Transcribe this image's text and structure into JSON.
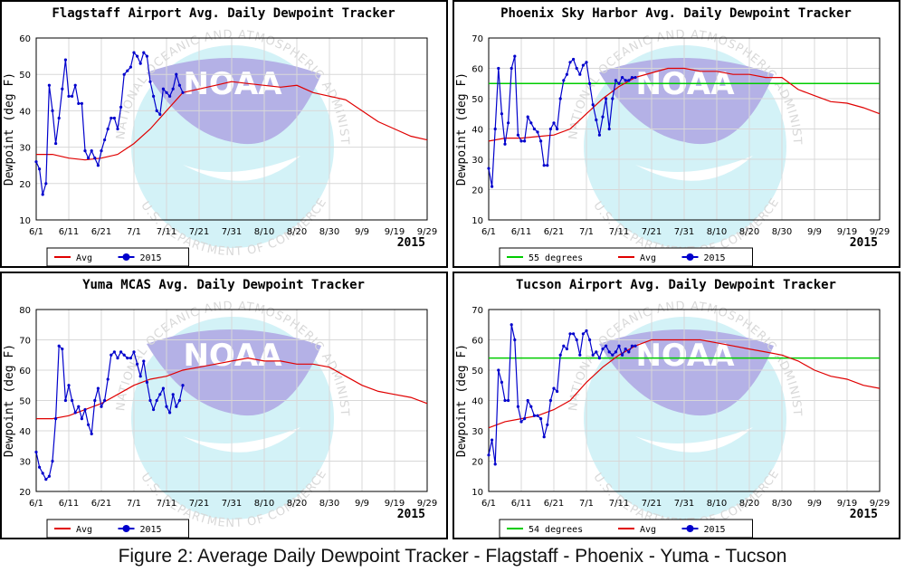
{
  "caption": "Figure 2: Average Daily Dewpoint Tracker - Flagstaff - Phoenix - Yuma - Tucson",
  "watermark": {
    "logo_text": "NOAA",
    "ring_text": "NATIONAL OCEANIC AND ATMOSPHERIC ADMINISTRATION",
    "bottom_text": "U.S. DEPARTMENT OF COMMERCE"
  },
  "colors": {
    "avg": "#e00000",
    "year": "#0000cc",
    "ref": "#00cc00",
    "grid": "#d8d8d8"
  },
  "chart_data": [
    {
      "type": "line",
      "title": "Flagstaff Airport Avg. Daily Dewpoint Tracker",
      "ylabel": "Dewpoint (deg F)",
      "year_label": "2015",
      "x_ticks": [
        "6/1",
        "6/11",
        "6/21",
        "7/1",
        "7/11",
        "7/21",
        "7/31",
        "8/10",
        "8/20",
        "8/30",
        "9/9",
        "9/19",
        "9/29"
      ],
      "ylim": [
        10,
        60
      ],
      "y_ticks": [
        10,
        20,
        30,
        40,
        50,
        60
      ],
      "grid": true,
      "legend": [
        "Avg",
        "2015"
      ],
      "series": [
        {
          "name": "Avg",
          "x": [
            0,
            5,
            10,
            15,
            20,
            25,
            30,
            35,
            40,
            45,
            50,
            55,
            60,
            65,
            70,
            75,
            80,
            85,
            90,
            95,
            100,
            105,
            110,
            115,
            120
          ],
          "y": [
            28,
            28,
            27,
            26.5,
            27,
            28,
            31,
            35,
            40,
            45,
            46,
            47,
            48,
            47.5,
            47,
            46.5,
            47,
            45,
            44,
            43,
            40,
            37,
            35,
            33,
            32
          ]
        },
        {
          "name": "2015",
          "x": [
            0,
            1,
            2,
            3,
            4,
            5,
            6,
            7,
            8,
            9,
            10,
            11,
            12,
            13,
            14,
            15,
            16,
            17,
            18,
            19,
            20,
            21,
            22,
            23,
            24,
            25,
            26,
            27,
            28,
            29,
            30,
            31,
            32,
            33,
            34,
            35,
            36,
            37,
            38,
            39,
            40,
            41,
            42,
            43,
            44,
            45
          ],
          "y": [
            26,
            24,
            17,
            20,
            47,
            40,
            31,
            38,
            46,
            54,
            44,
            44,
            47,
            42,
            42,
            29,
            27,
            29,
            27,
            25,
            29,
            32,
            35,
            38,
            38,
            35,
            41,
            50,
            51,
            52,
            56,
            55,
            53,
            56,
            55,
            48,
            44,
            40,
            39,
            46,
            45,
            44,
            46,
            50,
            47,
            45
          ]
        }
      ]
    },
    {
      "type": "line",
      "title": "Phoenix Sky Harbor Avg. Daily Dewpoint Tracker",
      "ylabel": "Dewpoint (deg F)",
      "year_label": "2015",
      "x_ticks": [
        "6/1",
        "6/11",
        "6/21",
        "7/1",
        "7/11",
        "7/21",
        "7/31",
        "8/10",
        "8/20",
        "8/30",
        "9/9",
        "9/19",
        "9/29"
      ],
      "ylim": [
        10,
        70
      ],
      "y_ticks": [
        10,
        20,
        30,
        40,
        50,
        60,
        70
      ],
      "grid": true,
      "reference": {
        "label": "55 degrees",
        "value": 55
      },
      "legend": [
        "55 degrees",
        "Avg",
        "2015"
      ],
      "series": [
        {
          "name": "Avg",
          "x": [
            0,
            5,
            10,
            15,
            20,
            25,
            30,
            35,
            40,
            45,
            50,
            55,
            60,
            65,
            70,
            75,
            80,
            85,
            90,
            95,
            100,
            105,
            110,
            115,
            120
          ],
          "y": [
            36,
            37,
            37,
            37.5,
            38,
            40,
            45,
            50,
            54,
            57,
            58.5,
            60,
            60,
            59,
            59,
            58,
            58,
            57,
            57,
            53,
            51,
            49,
            48.5,
            47,
            45
          ]
        },
        {
          "name": "2015",
          "x": [
            0,
            1,
            2,
            3,
            4,
            5,
            6,
            7,
            8,
            9,
            10,
            11,
            12,
            13,
            14,
            15,
            16,
            17,
            18,
            19,
            20,
            21,
            22,
            23,
            24,
            25,
            26,
            27,
            28,
            29,
            30,
            31,
            32,
            33,
            34,
            35,
            36,
            37,
            38,
            39,
            40,
            41,
            42,
            43,
            44,
            45
          ],
          "y": [
            27,
            21,
            40,
            60,
            45,
            35,
            42,
            60,
            64,
            38,
            36,
            36,
            44,
            42,
            40,
            39,
            36,
            28,
            28,
            40,
            42,
            40,
            50,
            56,
            58,
            62,
            63,
            60,
            58,
            61,
            62,
            55,
            48,
            43,
            38,
            44,
            50,
            40,
            50,
            56,
            55,
            57,
            56,
            56,
            57,
            57
          ]
        }
      ]
    },
    {
      "type": "line",
      "title": "Yuma MCAS Avg. Daily Dewpoint Tracker",
      "ylabel": "Dewpoint (deg F)",
      "year_label": "2015",
      "x_ticks": [
        "6/1",
        "6/11",
        "6/21",
        "7/1",
        "7/11",
        "7/21",
        "7/31",
        "8/10",
        "8/20",
        "8/30",
        "9/9",
        "9/19",
        "9/29"
      ],
      "ylim": [
        20,
        80
      ],
      "y_ticks": [
        20,
        30,
        40,
        50,
        60,
        70,
        80
      ],
      "grid": true,
      "legend": [
        "Avg",
        "2015"
      ],
      "series": [
        {
          "name": "Avg",
          "x": [
            0,
            5,
            10,
            15,
            20,
            25,
            30,
            35,
            40,
            45,
            50,
            55,
            60,
            65,
            70,
            75,
            80,
            85,
            90,
            95,
            100,
            105,
            110,
            115,
            120
          ],
          "y": [
            44,
            44,
            45,
            47,
            49,
            52,
            55,
            57,
            58,
            60,
            61,
            62,
            63,
            64,
            63,
            63,
            62,
            62,
            61,
            58,
            55,
            53,
            52,
            51,
            49
          ]
        },
        {
          "name": "2015",
          "x": [
            0,
            1,
            2,
            3,
            4,
            5,
            6,
            7,
            8,
            9,
            10,
            11,
            12,
            13,
            14,
            15,
            16,
            17,
            18,
            19,
            20,
            21,
            22,
            23,
            24,
            25,
            26,
            27,
            28,
            29,
            30,
            31,
            32,
            33,
            34,
            35,
            36,
            37,
            38,
            39,
            40,
            41,
            42,
            43,
            44,
            45
          ],
          "y": [
            33,
            28,
            26,
            24,
            25,
            30,
            44,
            68,
            67,
            50,
            55,
            50,
            46,
            48,
            44,
            47,
            42,
            39,
            50,
            54,
            48,
            50,
            57,
            65,
            66,
            64,
            66,
            65,
            64,
            64,
            66,
            62,
            58,
            63,
            56,
            50,
            47,
            50,
            52,
            54,
            48,
            46,
            52,
            48,
            50,
            55
          ]
        }
      ]
    },
    {
      "type": "line",
      "title": "Tucson Airport Avg. Daily Dewpoint Tracker",
      "ylabel": "Dewpoint (deg F)",
      "year_label": "2015",
      "x_ticks": [
        "6/1",
        "6/11",
        "6/21",
        "7/1",
        "7/11",
        "7/21",
        "7/31",
        "8/10",
        "8/20",
        "8/30",
        "9/9",
        "9/19",
        "9/29"
      ],
      "ylim": [
        10,
        70
      ],
      "y_ticks": [
        10,
        20,
        30,
        40,
        50,
        60,
        70
      ],
      "grid": true,
      "reference": {
        "label": "54 degrees",
        "value": 54
      },
      "legend": [
        "54 degrees",
        "Avg",
        "2015"
      ],
      "series": [
        {
          "name": "Avg",
          "x": [
            0,
            5,
            10,
            15,
            20,
            25,
            30,
            35,
            40,
            45,
            50,
            55,
            60,
            65,
            70,
            75,
            80,
            85,
            90,
            95,
            100,
            105,
            110,
            115,
            120
          ],
          "y": [
            31,
            33,
            34,
            35,
            37,
            40,
            46,
            51,
            55,
            58,
            60,
            60,
            60,
            60,
            59,
            58,
            57,
            56,
            55,
            53,
            50,
            48,
            47,
            45,
            44
          ]
        },
        {
          "name": "2015",
          "x": [
            0,
            1,
            2,
            3,
            4,
            5,
            6,
            7,
            8,
            9,
            10,
            11,
            12,
            13,
            14,
            15,
            16,
            17,
            18,
            19,
            20,
            21,
            22,
            23,
            24,
            25,
            26,
            27,
            28,
            29,
            30,
            31,
            32,
            33,
            34,
            35,
            36,
            37,
            38,
            39,
            40,
            41,
            42,
            43,
            44,
            45
          ],
          "y": [
            22,
            27,
            19,
            50,
            46,
            40,
            40,
            65,
            60,
            38,
            33,
            34,
            40,
            38,
            35,
            35,
            34,
            28,
            32,
            40,
            44,
            43,
            55,
            58,
            57,
            62,
            62,
            60,
            55,
            62,
            63,
            60,
            55,
            56,
            54,
            57,
            58,
            56,
            55,
            56,
            58,
            55,
            57,
            56,
            58,
            58
          ]
        }
      ]
    }
  ]
}
